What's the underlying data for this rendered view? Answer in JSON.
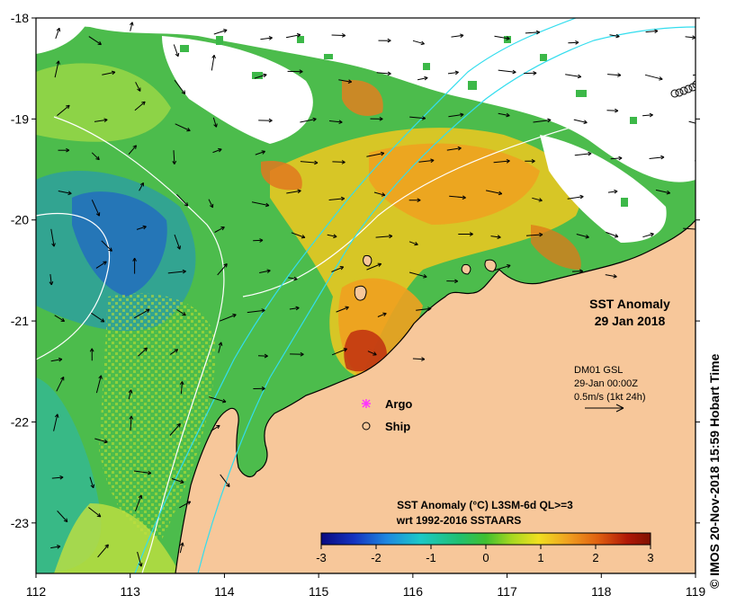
{
  "map": {
    "title": "SST Anomaly",
    "date": "29 Jan 2018",
    "x_ticks": [
      "112",
      "113",
      "114",
      "115",
      "116",
      "117",
      "118",
      "119"
    ],
    "y_ticks": [
      "-18",
      "-19",
      "-20",
      "-21",
      "-22",
      "-23"
    ],
    "x_range": [
      112,
      119
    ],
    "y_range": [
      -23.5,
      -18
    ]
  },
  "current_legend": {
    "source": "DM01 GSL",
    "time": "29-Jan 00:00Z",
    "scale": "0.5m/s (1kt 24h)"
  },
  "symbols": {
    "argo_label": "Argo",
    "ship_label": "Ship",
    "argo_color": "#ff33ff",
    "ship_color": "#000000"
  },
  "colorbar": {
    "title": "SST Anomaly (°C) L3SM-6d QL>=3",
    "subtitle": "wrt 1992-2016 SSTAARS",
    "ticks": [
      "-3",
      "-2",
      "-1",
      "0",
      "1",
      "2",
      "3"
    ],
    "range": [
      -3,
      3
    ]
  },
  "credit": "© IMOS 20-Nov-2018 15:59 Hobart Time",
  "colors": {
    "land": "#f7c79a",
    "cloud": "#ffffff",
    "isobath": "#ffffff",
    "isobath2": "#33ddee"
  }
}
